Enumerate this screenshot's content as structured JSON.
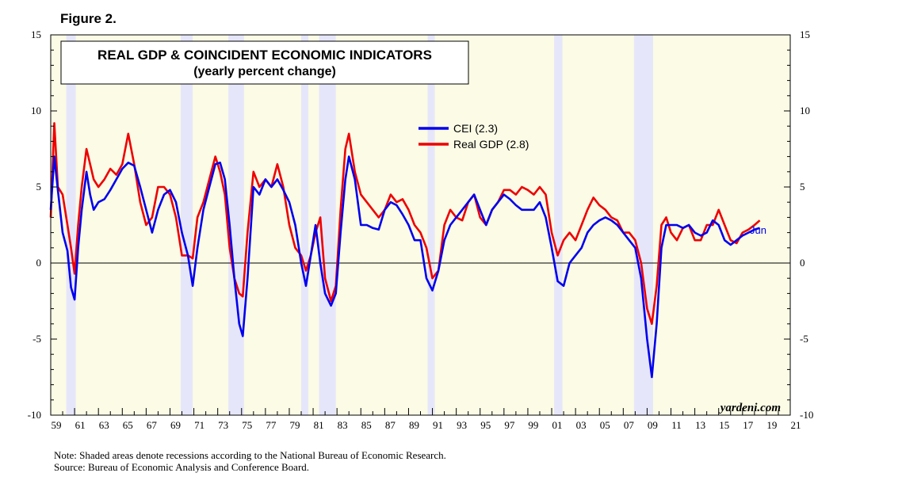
{
  "figure_label": "Figure 2.",
  "notes": {
    "line1": "Note: Shaded areas denote recessions according to the National Bureau of Economic Research.",
    "line2": "Source: Bureau of Economic Analysis and Conference Board."
  },
  "chart_data": {
    "type": "line",
    "title": "REAL GDP & COINCIDENT ECONOMIC INDICATORS",
    "subtitle": "(yearly percent change)",
    "credit": "yardeni.com",
    "end_label": "Jun",
    "xlim": [
      1959,
      2021
    ],
    "ylim": [
      -10,
      15
    ],
    "yticks": [
      -10,
      -5,
      0,
      5,
      10,
      15
    ],
    "ytick_labels": [
      "-10",
      "-5",
      "0",
      "5",
      "10",
      "15"
    ],
    "xtick_labels": [
      "59",
      "61",
      "63",
      "65",
      "67",
      "69",
      "71",
      "73",
      "75",
      "77",
      "79",
      "81",
      "83",
      "85",
      "87",
      "89",
      "91",
      "93",
      "95",
      "97",
      "99",
      "01",
      "03",
      "05",
      "07",
      "09",
      "11",
      "13",
      "15",
      "17",
      "19",
      "21"
    ],
    "xtick_years": [
      1959,
      1961,
      1963,
      1965,
      1967,
      1969,
      1971,
      1973,
      1975,
      1977,
      1979,
      1981,
      1983,
      1985,
      1987,
      1989,
      1991,
      1993,
      1995,
      1997,
      1999,
      2001,
      2003,
      2005,
      2007,
      2009,
      2011,
      2013,
      2015,
      2017,
      2019,
      2021
    ],
    "recessions": [
      [
        1960.3,
        1961.1
      ],
      [
        1969.9,
        1970.9
      ],
      [
        1973.9,
        1975.2
      ],
      [
        1980.0,
        1980.6
      ],
      [
        1981.5,
        1982.9
      ],
      [
        1990.6,
        1991.2
      ],
      [
        2001.2,
        2001.9
      ],
      [
        2007.9,
        2009.5
      ]
    ],
    "colors": {
      "cei": "#0000ee",
      "gdp": "#ee0000",
      "recession": "#e6e6fb",
      "plot_bg": "#fbfbe6",
      "axis": "#000000"
    },
    "legend": {
      "position": "top-center"
    },
    "series": [
      {
        "name": "CEI (2.3)",
        "key": "cei",
        "x": [
          1959.0,
          1959.3,
          1959.6,
          1960.0,
          1960.4,
          1960.7,
          1961.0,
          1961.3,
          1961.6,
          1962.0,
          1962.3,
          1962.6,
          1963.0,
          1963.5,
          1964.0,
          1964.5,
          1965.0,
          1965.5,
          1966.0,
          1966.5,
          1967.0,
          1967.5,
          1968.0,
          1968.5,
          1969.0,
          1969.5,
          1970.0,
          1970.5,
          1970.9,
          1971.3,
          1971.8,
          1972.3,
          1972.8,
          1973.2,
          1973.6,
          1974.0,
          1974.4,
          1974.8,
          1975.1,
          1975.5,
          1976.0,
          1976.5,
          1977.0,
          1977.5,
          1978.0,
          1978.5,
          1979.0,
          1979.5,
          1980.0,
          1980.4,
          1980.8,
          1981.2,
          1981.6,
          1982.0,
          1982.5,
          1982.9,
          1983.3,
          1983.7,
          1984.0,
          1984.5,
          1985.0,
          1985.5,
          1986.0,
          1986.5,
          1987.0,
          1987.5,
          1988.0,
          1988.5,
          1989.0,
          1989.5,
          1990.0,
          1990.5,
          1991.0,
          1991.5,
          1992.0,
          1992.5,
          1993.0,
          1993.5,
          1994.0,
          1994.5,
          1995.0,
          1995.5,
          1996.0,
          1996.5,
          1997.0,
          1997.5,
          1998.0,
          1998.5,
          1999.0,
          1999.5,
          2000.0,
          2000.5,
          2001.0,
          2001.5,
          2002.0,
          2002.5,
          2003.0,
          2003.5,
          2004.0,
          2004.5,
          2005.0,
          2005.5,
          2006.0,
          2006.5,
          2007.0,
          2007.5,
          2008.0,
          2008.5,
          2009.0,
          2009.4,
          2009.8,
          2010.2,
          2010.6,
          2011.0,
          2011.5,
          2012.0,
          2012.5,
          2013.0,
          2013.5,
          2014.0,
          2014.5,
          2015.0,
          2015.5,
          2016.0,
          2016.5,
          2017.0,
          2017.5,
          2018.0,
          2018.45
        ],
        "values": [
          3.5,
          7.0,
          4.8,
          2.0,
          0.8,
          -1.6,
          -2.4,
          1.0,
          3.5,
          6.0,
          4.5,
          3.5,
          4.0,
          4.2,
          4.8,
          5.5,
          6.2,
          6.6,
          6.4,
          5.0,
          3.5,
          2.0,
          3.5,
          4.5,
          4.8,
          4.0,
          2.0,
          0.5,
          -1.5,
          1.0,
          3.5,
          5.0,
          6.5,
          6.6,
          5.5,
          2.5,
          -1.0,
          -4.0,
          -4.8,
          -1.0,
          5.0,
          4.5,
          5.5,
          5.0,
          5.5,
          4.8,
          4.0,
          2.5,
          0.0,
          -1.5,
          0.5,
          2.5,
          0.0,
          -2.0,
          -2.8,
          -2.0,
          2.0,
          5.5,
          7.0,
          5.5,
          2.5,
          2.5,
          2.3,
          2.2,
          3.5,
          4.0,
          3.8,
          3.2,
          2.5,
          1.5,
          1.5,
          -1.0,
          -1.8,
          -0.5,
          1.5,
          2.5,
          3.0,
          3.5,
          4.0,
          4.5,
          3.5,
          2.5,
          3.5,
          4.0,
          4.5,
          4.2,
          3.8,
          3.5,
          3.5,
          3.5,
          4.0,
          3.0,
          1.0,
          -1.2,
          -1.5,
          0.0,
          0.5,
          1.0,
          2.0,
          2.5,
          2.8,
          3.0,
          2.8,
          2.5,
          2.0,
          1.5,
          1.0,
          -1.0,
          -5.0,
          -7.5,
          -4.0,
          1.0,
          2.5,
          2.5,
          2.5,
          2.3,
          2.5,
          2.0,
          1.8,
          2.0,
          2.8,
          2.5,
          1.5,
          1.2,
          1.5,
          1.8,
          2.0,
          2.2,
          2.3
        ]
      },
      {
        "name": "Real GDP (2.8)",
        "key": "gdp",
        "x": [
          1959.0,
          1959.3,
          1959.6,
          1960.0,
          1960.4,
          1960.7,
          1961.0,
          1961.3,
          1961.6,
          1962.0,
          1962.3,
          1962.6,
          1963.0,
          1963.5,
          1964.0,
          1964.5,
          1965.0,
          1965.5,
          1966.0,
          1966.5,
          1967.0,
          1967.5,
          1968.0,
          1968.5,
          1969.0,
          1969.5,
          1970.0,
          1970.5,
          1970.9,
          1971.3,
          1971.8,
          1972.3,
          1972.8,
          1973.2,
          1973.6,
          1974.0,
          1974.4,
          1974.8,
          1975.1,
          1975.5,
          1976.0,
          1976.5,
          1977.0,
          1977.5,
          1978.0,
          1978.5,
          1979.0,
          1979.5,
          1980.0,
          1980.4,
          1980.8,
          1981.2,
          1981.6,
          1982.0,
          1982.5,
          1982.9,
          1983.3,
          1983.7,
          1984.0,
          1984.5,
          1985.0,
          1985.5,
          1986.0,
          1986.5,
          1987.0,
          1987.5,
          1988.0,
          1988.5,
          1989.0,
          1989.5,
          1990.0,
          1990.5,
          1991.0,
          1991.5,
          1992.0,
          1992.5,
          1993.0,
          1993.5,
          1994.0,
          1994.5,
          1995.0,
          1995.5,
          1996.0,
          1996.5,
          1997.0,
          1997.5,
          1998.0,
          1998.5,
          1999.0,
          1999.5,
          2000.0,
          2000.5,
          2001.0,
          2001.5,
          2002.0,
          2002.5,
          2003.0,
          2003.5,
          2004.0,
          2004.5,
          2005.0,
          2005.5,
          2006.0,
          2006.5,
          2007.0,
          2007.5,
          2008.0,
          2008.5,
          2009.0,
          2009.4,
          2009.8,
          2010.2,
          2010.6,
          2011.0,
          2011.5,
          2012.0,
          2012.5,
          2013.0,
          2013.5,
          2014.0,
          2014.5,
          2015.0,
          2015.5,
          2016.0,
          2016.5,
          2017.0,
          2017.5,
          2018.0,
          2018.45
        ],
        "values": [
          3.0,
          9.2,
          5.0,
          4.5,
          2.5,
          1.0,
          -0.7,
          2.5,
          5.0,
          7.5,
          6.5,
          5.5,
          5.0,
          5.5,
          6.2,
          5.8,
          6.5,
          8.5,
          6.5,
          4.0,
          2.5,
          3.0,
          5.0,
          5.0,
          4.5,
          3.0,
          0.5,
          0.5,
          0.3,
          3.0,
          4.0,
          5.5,
          7.0,
          6.0,
          4.5,
          1.0,
          -1.0,
          -2.0,
          -2.2,
          2.0,
          6.0,
          5.0,
          5.5,
          5.0,
          6.5,
          5.0,
          2.5,
          1.0,
          0.5,
          -0.5,
          0.5,
          2.0,
          3.0,
          -1.0,
          -2.5,
          -1.5,
          3.5,
          7.5,
          8.5,
          6.0,
          4.5,
          4.0,
          3.5,
          3.0,
          3.5,
          4.5,
          4.0,
          4.2,
          3.5,
          2.5,
          2.0,
          1.0,
          -1.0,
          -0.5,
          2.5,
          3.5,
          3.0,
          2.8,
          4.0,
          4.5,
          3.0,
          2.5,
          3.5,
          4.0,
          4.8,
          4.8,
          4.5,
          5.0,
          4.8,
          4.5,
          5.0,
          4.5,
          2.0,
          0.5,
          1.5,
          2.0,
          1.5,
          2.5,
          3.5,
          4.3,
          3.8,
          3.5,
          3.0,
          2.8,
          2.0,
          2.0,
          1.5,
          0.0,
          -3.0,
          -4.0,
          -1.5,
          2.5,
          3.0,
          2.0,
          1.5,
          2.3,
          2.5,
          1.5,
          1.5,
          2.5,
          2.5,
          3.5,
          2.5,
          1.5,
          1.3,
          2.0,
          2.2,
          2.5,
          2.8
        ]
      }
    ]
  }
}
